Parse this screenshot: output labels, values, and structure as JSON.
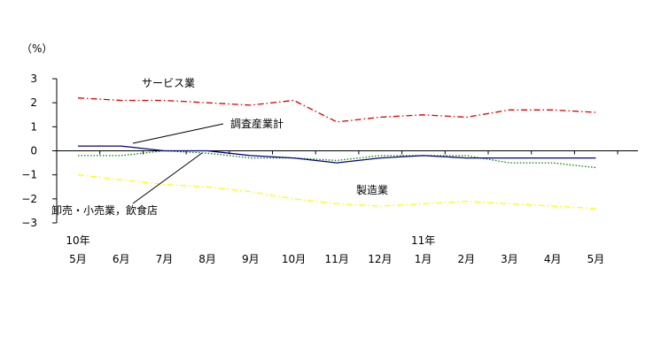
{
  "chart_data": {
    "type": "line",
    "unit_label": "（%）",
    "ylim": [
      -3,
      3
    ],
    "y_ticks": [
      3,
      2,
      1,
      0,
      -1,
      -2,
      -3
    ],
    "categories": [
      "5月",
      "6月",
      "7月",
      "8月",
      "9月",
      "10月",
      "11月",
      "12月",
      "1月",
      "2月",
      "3月",
      "4月",
      "5月"
    ],
    "year_labels": [
      {
        "index": 0,
        "label": "10年"
      },
      {
        "index": 8,
        "label": "11年"
      }
    ],
    "series": [
      {
        "name": "調査産業計",
        "color": "#000080",
        "dash": "solid",
        "values": [
          0.2,
          0.2,
          0.0,
          0.0,
          -0.2,
          -0.3,
          -0.5,
          -0.3,
          -0.2,
          -0.3,
          -0.3,
          -0.3,
          -0.3
        ]
      },
      {
        "name": "製造業",
        "color": "#ffff00",
        "dash": "dashdot",
        "values": [
          -1.0,
          -1.2,
          -1.4,
          -1.5,
          -1.7,
          -2.0,
          -2.2,
          -2.3,
          -2.2,
          -2.1,
          -2.2,
          -2.3,
          -2.4
        ]
      },
      {
        "name": "卸売・小売業，飲食店",
        "color": "#008000",
        "dash": "dotted",
        "values": [
          -0.2,
          -0.2,
          0.0,
          -0.1,
          -0.3,
          -0.3,
          -0.4,
          -0.2,
          -0.2,
          -0.2,
          -0.5,
          -0.5,
          -0.7
        ]
      },
      {
        "name": "サービス業",
        "color": "#dd0000",
        "dash": "dashdot",
        "values": [
          2.2,
          2.1,
          2.1,
          2.0,
          1.9,
          2.1,
          1.2,
          1.4,
          1.5,
          1.4,
          1.7,
          1.7,
          1.6
        ]
      }
    ],
    "grid": false,
    "zero_line": true
  }
}
